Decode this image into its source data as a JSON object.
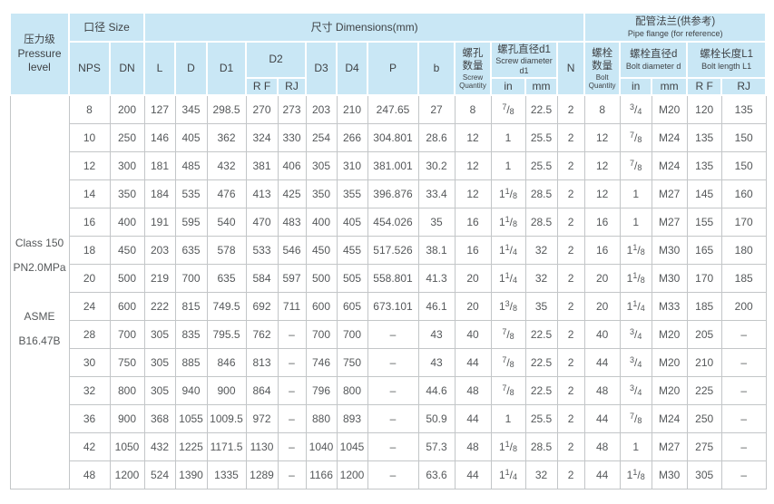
{
  "colors": {
    "header_bg": "#c9e7f5",
    "body_border": "#c3c6c8",
    "text": "#55585a"
  },
  "table": {
    "header": {
      "pressure": {
        "zh": "压力级",
        "en1": "Pressure",
        "en2": "level"
      },
      "size_group": "口径 Size",
      "dimensions_group": "尺寸 Dimensions(mm)",
      "flange_group_zh": "配管法兰(供参考)",
      "flange_group_en": "Pipe flange (for reference)",
      "nps": "NPS",
      "dn": "DN",
      "L": "L",
      "D": "D",
      "D1": "D1",
      "D2": "D2",
      "d2_rf": "R F",
      "d2_rj": "RJ",
      "D3": "D3",
      "D4": "D4",
      "P": "P",
      "b": "b",
      "screw_qty_zh1": "螺孔",
      "screw_qty_zh2": "数量",
      "screw_qty_en1": "Screw",
      "screw_qty_en2": "Quantity",
      "screw_dia_zh": "螺孔直径d1",
      "screw_dia_en": "Screw diameter d1",
      "screw_in": "in",
      "screw_mm": "mm",
      "N": "N",
      "bolt_qty_zh1": "螺栓",
      "bolt_qty_zh2": "数量",
      "bolt_qty_en1": "Bolt",
      "bolt_qty_en2": "Quantity",
      "bolt_dia_zh": "螺栓直径d",
      "bolt_dia_en": "Bolt diameter d",
      "bolt_in": "in",
      "bolt_mm": "mm",
      "bolt_len_zh": "螺栓长度L1",
      "bolt_len_en": "Bolt length L1",
      "len_rf": "R F",
      "len_rj": "RJ"
    },
    "pressure_cell": {
      "lines": [
        "Class 150",
        "PN2.0MPa",
        "",
        "ASME",
        "B16.47B"
      ]
    },
    "columns": [
      "nps",
      "dn",
      "l",
      "d",
      "d1",
      "d2-rf",
      "d2-rj",
      "d3",
      "d4",
      "p",
      "b",
      "screw-qty",
      "screw-in",
      "screw-mm",
      "n",
      "bolt-qty",
      "bolt-in",
      "bolt-mm",
      "len-rf",
      "len-rj"
    ],
    "fraction_columns": [
      12,
      16
    ],
    "rows": [
      [
        "8",
        "200",
        "127",
        "345",
        "298.5",
        "270",
        "273",
        "203",
        "210",
        "247.65",
        "27",
        "8",
        "7/8",
        "22.5",
        "2",
        "8",
        "3/4",
        "M20",
        "120",
        "135"
      ],
      [
        "10",
        "250",
        "146",
        "405",
        "362",
        "324",
        "330",
        "254",
        "266",
        "304.801",
        "28.6",
        "12",
        "1",
        "25.5",
        "2",
        "12",
        "7/8",
        "M24",
        "135",
        "150"
      ],
      [
        "12",
        "300",
        "181",
        "485",
        "432",
        "381",
        "406",
        "305",
        "310",
        "381.001",
        "30.2",
        "12",
        "1",
        "25.5",
        "2",
        "12",
        "7/8",
        "M24",
        "135",
        "150"
      ],
      [
        "14",
        "350",
        "184",
        "535",
        "476",
        "413",
        "425",
        "350",
        "355",
        "396.876",
        "33.4",
        "12",
        "1 1/8",
        "28.5",
        "2",
        "12",
        "1",
        "M27",
        "145",
        "160"
      ],
      [
        "16",
        "400",
        "191",
        "595",
        "540",
        "470",
        "483",
        "400",
        "405",
        "454.026",
        "35",
        "16",
        "1 1/8",
        "28.5",
        "2",
        "16",
        "1",
        "M27",
        "155",
        "170"
      ],
      [
        "18",
        "450",
        "203",
        "635",
        "578",
        "533",
        "546",
        "450",
        "455",
        "517.526",
        "38.1",
        "16",
        "1 1/4",
        "32",
        "2",
        "16",
        "1 1/8",
        "M30",
        "165",
        "180"
      ],
      [
        "20",
        "500",
        "219",
        "700",
        "635",
        "584",
        "597",
        "500",
        "505",
        "558.801",
        "41.3",
        "20",
        "1 1/4",
        "32",
        "2",
        "20",
        "1 1/8",
        "M30",
        "170",
        "185"
      ],
      [
        "24",
        "600",
        "222",
        "815",
        "749.5",
        "692",
        "711",
        "600",
        "605",
        "673.101",
        "46.1",
        "20",
        "1 3/8",
        "35",
        "2",
        "20",
        "1 1/4",
        "M33",
        "185",
        "200"
      ],
      [
        "28",
        "700",
        "305",
        "835",
        "795.5",
        "762",
        "–",
        "700",
        "700",
        "–",
        "43",
        "40",
        "7/8",
        "22.5",
        "2",
        "40",
        "3/4",
        "M20",
        "205",
        "–"
      ],
      [
        "30",
        "750",
        "305",
        "885",
        "846",
        "813",
        "–",
        "746",
        "750",
        "–",
        "43",
        "44",
        "7/8",
        "22.5",
        "2",
        "44",
        "3/4",
        "M20",
        "210",
        "–"
      ],
      [
        "32",
        "800",
        "305",
        "940",
        "900",
        "864",
        "–",
        "796",
        "800",
        "–",
        "44.6",
        "48",
        "7/8",
        "22.5",
        "2",
        "48",
        "3/4",
        "M20",
        "225",
        "–"
      ],
      [
        "36",
        "900",
        "368",
        "1055",
        "1009.5",
        "972",
        "–",
        "880",
        "893",
        "–",
        "50.9",
        "44",
        "1",
        "25.5",
        "2",
        "44",
        "7/8",
        "M24",
        "250",
        "–"
      ],
      [
        "42",
        "1050",
        "432",
        "1225",
        "1171.5",
        "1130",
        "–",
        "1040",
        "1045",
        "–",
        "57.3",
        "48",
        "1 1/8",
        "28.5",
        "2",
        "48",
        "1",
        "M27",
        "275",
        "–"
      ],
      [
        "48",
        "1200",
        "524",
        "1390",
        "1335",
        "1289",
        "–",
        "1166",
        "1200",
        "–",
        "63.6",
        "44",
        "1 1/4",
        "32",
        "2",
        "44",
        "1 1/8",
        "M30",
        "305",
        "–"
      ]
    ]
  }
}
